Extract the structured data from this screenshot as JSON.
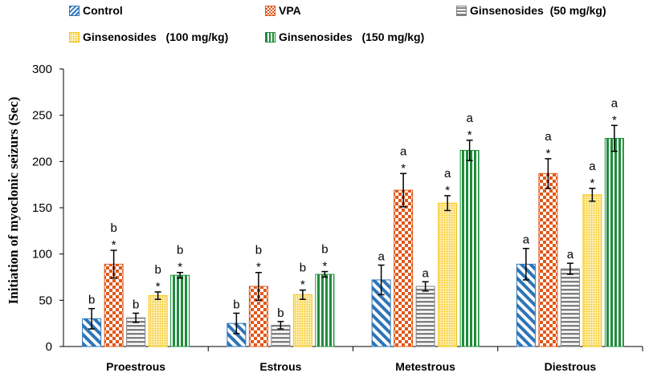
{
  "chart_data": {
    "type": "bar",
    "title": "",
    "xlabel": "",
    "ylabel": "Initiation of myoclonic seizurs (Sec)",
    "ylim": [
      0,
      300
    ],
    "yticks": [
      0,
      50,
      100,
      150,
      200,
      250,
      300
    ],
    "grid": false,
    "legend_position": "top",
    "categories": [
      "Proestrous",
      "Estrous",
      "Metestrous",
      "Diestrous"
    ],
    "series": [
      {
        "name": "Control",
        "color": "#2e75b6",
        "pattern": "diagonal-stripes",
        "values": [
          30,
          25,
          72,
          89
        ],
        "errors": [
          11,
          11,
          16,
          17
        ],
        "labels": [
          "b",
          "b",
          "a",
          "a"
        ],
        "star": [
          false,
          false,
          false,
          false
        ]
      },
      {
        "name": "VPA",
        "color": "#e0581b",
        "pattern": "checker",
        "values": [
          89,
          65,
          169,
          187
        ],
        "errors": [
          15,
          15,
          18,
          16
        ],
        "labels": [
          "b",
          "b",
          "a",
          "a"
        ],
        "star": [
          true,
          true,
          true,
          true
        ]
      },
      {
        "name": "Ginsenosides  (50 mg/kg)",
        "color": "#808080",
        "pattern": "horizontal-stripes",
        "values": [
          31,
          23,
          65,
          84
        ],
        "errors": [
          5,
          4,
          5,
          6
        ],
        "labels": [
          "b",
          "b",
          "a",
          "a"
        ],
        "star": [
          false,
          false,
          false,
          false
        ]
      },
      {
        "name": "Ginsenosides   (100 mg/kg)",
        "color": "#f5c518",
        "pattern": "dots",
        "values": [
          55,
          56,
          155,
          164
        ],
        "errors": [
          4,
          5,
          8,
          7
        ],
        "labels": [
          "b",
          "b",
          "a",
          "a"
        ],
        "star": [
          true,
          true,
          true,
          true
        ]
      },
      {
        "name": "Ginsenosides   (150 mg/kg)",
        "color": "#1e8c3a",
        "pattern": "vertical-stripes",
        "values": [
          77,
          78,
          212,
          225
        ],
        "errors": [
          3,
          3,
          11,
          14
        ],
        "labels": [
          "b",
          "b",
          "a",
          "a"
        ],
        "star": [
          true,
          true,
          true,
          true
        ]
      }
    ],
    "star_symbol": "*"
  }
}
